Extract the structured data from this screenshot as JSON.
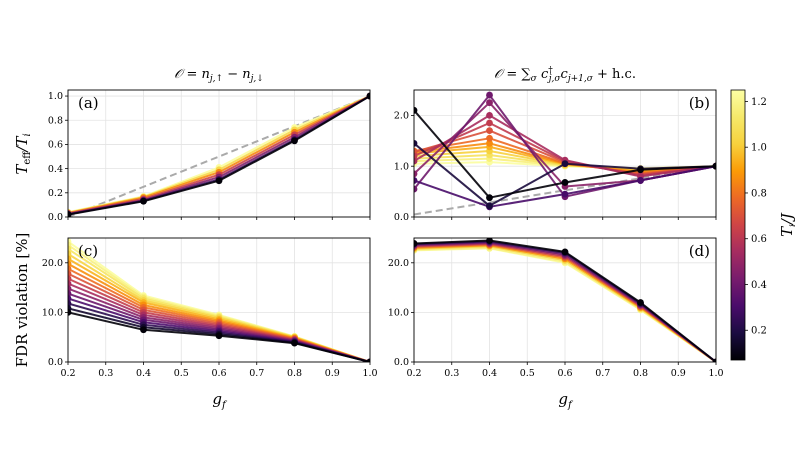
{
  "figure": {
    "xlabel": "g",
    "xlabel_sub": "f",
    "colorbar": {
      "label": "T",
      "label_sub": "i",
      "label_rest": "/J",
      "min": 0.07,
      "max": 1.25,
      "ticks": [
        "0.2",
        "0.4",
        "0.6",
        "0.8",
        "1.0",
        "1.2"
      ],
      "tick_values": [
        0.2,
        0.4,
        0.6,
        0.8,
        1.0,
        1.2
      ],
      "colormap": "inferno"
    }
  },
  "labels": {
    "ylabel_top_main": "T",
    "ylabel_top_sub": "eff",
    "ylabel_top_rest": "/T",
    "ylabel_top_sub2": "i",
    "ylabel_bottom": "FDR violation [%]",
    "title_left": "𝒪 = n_{j,↑} − n_{j,↓}",
    "title_left_main": "𝒪 = n",
    "title_left_sub1": "j,↑",
    "title_left_mid": " − n",
    "title_left_sub2": "j,↓",
    "title_right_main": "𝒪 = ∑",
    "title_right_sub1": "σ",
    "title_right_c1": " c",
    "title_right_sup": "†",
    "title_right_sub2": "j,σ",
    "title_right_c2": "c",
    "title_right_sub3": "j+1,σ",
    "title_right_tail": " + h.c."
  },
  "chart_data": [
    {
      "panel": "(a)",
      "type": "line",
      "title": "𝒪 = n_{j,↑} − n_{j,↓}",
      "x": [
        0.2,
        0.4,
        0.6,
        0.8,
        1.0
      ],
      "xlim": [
        0.2,
        1.0
      ],
      "ylim": [
        0.0,
        1.05
      ],
      "xticks": [],
      "yticks": [
        "0.0",
        "0.2",
        "0.4",
        "0.6",
        "0.8",
        "1.0"
      ],
      "ytick_values": [
        0.0,
        0.2,
        0.4,
        0.6,
        0.8,
        1.0
      ],
      "grid": true,
      "reference_line": {
        "style": "dashed",
        "color": "#aaaaaa",
        "x": [
          0.2,
          1.0
        ],
        "y": [
          0.0,
          1.0
        ]
      },
      "series": [
        {
          "Ti": 0.08,
          "values": [
            0.02,
            0.13,
            0.3,
            0.63,
            1.0
          ]
        },
        {
          "Ti": 0.25,
          "values": [
            0.022,
            0.135,
            0.31,
            0.64,
            1.0
          ]
        },
        {
          "Ti": 0.45,
          "values": [
            0.025,
            0.14,
            0.33,
            0.66,
            1.0
          ]
        },
        {
          "Ti": 0.65,
          "values": [
            0.03,
            0.15,
            0.35,
            0.68,
            1.0
          ]
        },
        {
          "Ti": 0.85,
          "values": [
            0.033,
            0.16,
            0.37,
            0.7,
            1.0
          ]
        },
        {
          "Ti": 1.05,
          "values": [
            0.036,
            0.165,
            0.39,
            0.72,
            1.0
          ]
        },
        {
          "Ti": 1.24,
          "values": [
            0.04,
            0.17,
            0.41,
            0.74,
            1.0
          ]
        }
      ]
    },
    {
      "panel": "(b)",
      "type": "line",
      "title": "𝒪 = ∑_σ c†_{j,σ} c_{j+1,σ} + h.c.",
      "x": [
        0.2,
        0.4,
        0.6,
        0.8,
        1.0
      ],
      "xlim": [
        0.2,
        1.0
      ],
      "ylim": [
        0.0,
        2.5
      ],
      "xticks": [],
      "yticks": [
        "0.0",
        "1.0",
        "2.0"
      ],
      "ytick_values": [
        0.0,
        1.0,
        2.0
      ],
      "grid": true,
      "reference_line": {
        "style": "dashed",
        "color": "#aaaaaa",
        "x": [
          0.2,
          1.0
        ],
        "y": [
          0.05,
          1.0
        ]
      },
      "series": [
        {
          "Ti": 0.08,
          "values": [
            2.1,
            0.38,
            0.68,
            0.93,
            1.0
          ]
        },
        {
          "Ti": 0.18,
          "values": [
            1.45,
            0.22,
            1.05,
            0.95,
            1.0
          ]
        },
        {
          "Ti": 0.3,
          "values": [
            0.72,
            0.2,
            0.45,
            0.72,
            1.0
          ]
        },
        {
          "Ti": 0.4,
          "values": [
            0.55,
            2.4,
            0.4,
            0.72,
            1.0
          ]
        },
        {
          "Ti": 0.47,
          "values": [
            0.85,
            2.25,
            0.6,
            0.72,
            1.0
          ]
        },
        {
          "Ti": 0.55,
          "values": [
            1.1,
            2.0,
            1.12,
            0.8,
            1.0
          ]
        },
        {
          "Ti": 0.62,
          "values": [
            1.2,
            1.85,
            1.1,
            0.82,
            1.0
          ]
        },
        {
          "Ti": 0.7,
          "values": [
            1.28,
            1.7,
            1.08,
            0.84,
            1.0
          ]
        },
        {
          "Ti": 0.78,
          "values": [
            1.3,
            1.55,
            1.06,
            0.86,
            1.0
          ]
        },
        {
          "Ti": 0.86,
          "values": [
            1.28,
            1.45,
            1.05,
            0.88,
            1.0
          ]
        },
        {
          "Ti": 0.94,
          "values": [
            1.25,
            1.38,
            1.04,
            0.9,
            1.0
          ]
        },
        {
          "Ti": 1.02,
          "values": [
            1.2,
            1.3,
            1.03,
            0.92,
            1.0
          ]
        },
        {
          "Ti": 1.1,
          "values": [
            1.15,
            1.22,
            1.02,
            0.94,
            1.0
          ]
        },
        {
          "Ti": 1.17,
          "values": [
            1.1,
            1.15,
            1.01,
            0.95,
            1.0
          ]
        },
        {
          "Ti": 1.24,
          "values": [
            1.05,
            1.08,
            1.0,
            0.96,
            1.0
          ]
        }
      ]
    },
    {
      "panel": "(c)",
      "type": "line",
      "x": [
        0.2,
        0.4,
        0.6,
        0.8,
        1.0
      ],
      "xlim": [
        0.2,
        1.0
      ],
      "ylim": [
        0.0,
        25.0
      ],
      "xticks": [
        "0.2",
        "0.3",
        "0.4",
        "0.5",
        "0.6",
        "0.7",
        "0.8",
        "0.9",
        "1.0"
      ],
      "xtick_values": [
        0.2,
        0.3,
        0.4,
        0.5,
        0.6,
        0.7,
        0.8,
        0.9,
        1.0
      ],
      "yticks": [
        "0.0",
        "10.0",
        "20.0"
      ],
      "ytick_values": [
        0.0,
        10.0,
        20.0
      ],
      "grid": true,
      "series": [
        {
          "Ti": 0.08,
          "values": [
            10.0,
            6.5,
            5.3,
            3.8,
            0.0
          ]
        },
        {
          "Ti": 0.15,
          "values": [
            10.8,
            7.0,
            5.6,
            3.9,
            0.0
          ]
        },
        {
          "Ti": 0.23,
          "values": [
            11.8,
            7.5,
            5.9,
            4.0,
            0.0
          ]
        },
        {
          "Ti": 0.31,
          "values": [
            12.8,
            8.0,
            6.2,
            4.1,
            0.0
          ]
        },
        {
          "Ti": 0.39,
          "values": [
            13.8,
            8.5,
            6.5,
            4.2,
            0.0
          ]
        },
        {
          "Ti": 0.47,
          "values": [
            14.8,
            9.0,
            6.8,
            4.3,
            0.0
          ]
        },
        {
          "Ti": 0.55,
          "values": [
            15.8,
            9.5,
            7.1,
            4.4,
            0.0
          ]
        },
        {
          "Ti": 0.63,
          "values": [
            16.8,
            10.0,
            7.4,
            4.5,
            0.0
          ]
        },
        {
          "Ti": 0.71,
          "values": [
            17.8,
            10.5,
            7.7,
            4.6,
            0.0
          ]
        },
        {
          "Ti": 0.79,
          "values": [
            18.8,
            11.0,
            8.0,
            4.7,
            0.0
          ]
        },
        {
          "Ti": 0.87,
          "values": [
            19.8,
            11.5,
            8.3,
            4.8,
            0.0
          ]
        },
        {
          "Ti": 0.95,
          "values": [
            20.8,
            12.0,
            8.6,
            4.9,
            0.0
          ]
        },
        {
          "Ti": 1.03,
          "values": [
            21.8,
            12.4,
            8.9,
            5.0,
            0.0
          ]
        },
        {
          "Ti": 1.11,
          "values": [
            22.8,
            12.8,
            9.1,
            5.05,
            0.0
          ]
        },
        {
          "Ti": 1.18,
          "values": [
            23.6,
            13.1,
            9.3,
            5.1,
            0.0
          ]
        },
        {
          "Ti": 1.24,
          "values": [
            24.3,
            13.4,
            9.5,
            5.15,
            0.0
          ]
        }
      ]
    },
    {
      "panel": "(d)",
      "type": "line",
      "x": [
        0.2,
        0.4,
        0.6,
        0.8,
        1.0
      ],
      "xlim": [
        0.2,
        1.0
      ],
      "ylim": [
        0.0,
        25.0
      ],
      "xticks": [
        "0.2",
        "0.3",
        "0.4",
        "0.5",
        "0.6",
        "0.7",
        "0.8",
        "0.9",
        "1.0"
      ],
      "xtick_values": [
        0.2,
        0.3,
        0.4,
        0.5,
        0.6,
        0.7,
        0.8,
        0.9,
        1.0
      ],
      "yticks": [
        "0.0",
        "10.0",
        "20.0"
      ],
      "ytick_values": [
        0.0,
        10.0,
        20.0
      ],
      "grid": true,
      "series": [
        {
          "Ti": 0.08,
          "values": [
            23.9,
            24.5,
            22.2,
            12.0,
            0.0
          ]
        },
        {
          "Ti": 0.23,
          "values": [
            23.8,
            24.3,
            22.0,
            11.8,
            0.0
          ]
        },
        {
          "Ti": 0.39,
          "values": [
            23.6,
            24.1,
            21.7,
            11.6,
            0.0
          ]
        },
        {
          "Ti": 0.55,
          "values": [
            23.4,
            23.9,
            21.4,
            11.4,
            0.0
          ]
        },
        {
          "Ti": 0.71,
          "values": [
            23.2,
            23.7,
            21.1,
            11.2,
            0.0
          ]
        },
        {
          "Ti": 0.87,
          "values": [
            23.0,
            23.5,
            20.8,
            11.0,
            0.0
          ]
        },
        {
          "Ti": 1.03,
          "values": [
            22.8,
            23.3,
            20.5,
            10.8,
            0.0
          ]
        },
        {
          "Ti": 1.18,
          "values": [
            22.6,
            23.0,
            20.2,
            10.6,
            0.0
          ]
        },
        {
          "Ti": 1.24,
          "values": [
            22.5,
            22.9,
            20.0,
            10.5,
            0.0
          ]
        }
      ]
    }
  ]
}
